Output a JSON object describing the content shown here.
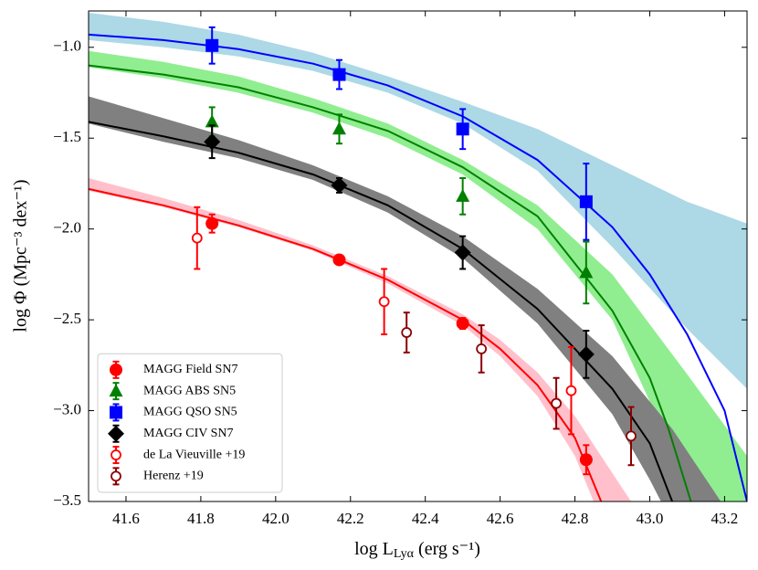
{
  "chart_data": {
    "type": "scatter",
    "ylabel": "log Φ (Mpc⁻³ dex⁻¹)",
    "xlabel": {
      "main": "log L",
      "sub": "Lyα",
      "rest": " (erg s⁻¹)"
    },
    "xlim": [
      41.5,
      43.26
    ],
    "ylim": [
      -3.5,
      -0.8
    ],
    "xticks": [
      41.6,
      41.8,
      {
        "value": 42,
        "label": "42.0"
      },
      42.2,
      42.4,
      42.6,
      42.8,
      {
        "value": 43,
        "label": "43.0"
      },
      43.2
    ],
    "yticks": [
      {
        "value": -1,
        "label": "−1.0"
      },
      {
        "value": -1.5,
        "label": "−1.5"
      },
      {
        "value": -2,
        "label": "−2.0"
      },
      {
        "value": -2.5,
        "label": "−2.5"
      },
      {
        "value": -3,
        "label": "−3.0"
      },
      {
        "value": -3.5,
        "label": "−3.5"
      }
    ],
    "legend": "lower left",
    "bands": [
      {
        "color": "#add8e6",
        "x": [
          41.5,
          41.7,
          41.9,
          42.1,
          42.3,
          42.5,
          42.7,
          42.9,
          43.1,
          43.26
        ],
        "upper": [
          -0.81,
          -0.86,
          -0.93,
          -1.03,
          -1.16,
          -1.3,
          -1.45,
          -1.65,
          -1.85,
          -1.97
        ],
        "lower": [
          -0.96,
          -1.0,
          -1.05,
          -1.13,
          -1.25,
          -1.42,
          -1.68,
          -2.1,
          -2.55,
          -2.88
        ]
      },
      {
        "color": "#90ee90",
        "x": [
          41.5,
          41.7,
          41.9,
          42.1,
          42.3,
          42.5,
          42.7,
          42.9,
          43.1,
          43.26
        ],
        "upper": [
          -1.02,
          -1.08,
          -1.16,
          -1.28,
          -1.42,
          -1.62,
          -1.87,
          -2.25,
          -2.8,
          -3.25
        ],
        "lower": [
          -1.11,
          -1.17,
          -1.25,
          -1.36,
          -1.5,
          -1.7,
          -2.0,
          -2.5,
          -3.4,
          -3.9
        ]
      },
      {
        "color": "#808080",
        "x": [
          41.5,
          41.7,
          41.9,
          42.1,
          42.3,
          42.5,
          42.7,
          42.9,
          43.0,
          43.06,
          43.19
        ],
        "upper": [
          -1.27,
          -1.39,
          -1.51,
          -1.65,
          -1.82,
          -2.04,
          -2.33,
          -2.7,
          -2.95,
          -3.1,
          -3.5
        ],
        "lower": [
          -1.42,
          -1.52,
          -1.61,
          -1.73,
          -1.91,
          -2.16,
          -2.52,
          -3.02,
          -3.38,
          -3.62,
          -4.0
        ]
      },
      {
        "color": "#ffc0cb",
        "x": [
          41.5,
          41.7,
          41.9,
          42.1,
          42.3,
          42.5,
          42.6,
          42.7,
          42.8,
          42.87,
          42.95
        ],
        "upper": [
          -1.72,
          -1.83,
          -1.95,
          -2.09,
          -2.26,
          -2.47,
          -2.61,
          -2.79,
          -3.03,
          -3.25,
          -3.5
        ],
        "lower": [
          -1.79,
          -1.88,
          -1.99,
          -2.12,
          -2.3,
          -2.53,
          -2.7,
          -2.92,
          -3.25,
          -3.6,
          -3.9
        ]
      }
    ],
    "curves": [
      {
        "color": "#0000ff",
        "x": [
          41.5,
          41.7,
          41.9,
          42.1,
          42.3,
          42.5,
          42.7,
          42.9,
          43.0,
          43.1,
          43.2,
          43.26
        ],
        "values": [
          -0.93,
          -0.96,
          -1.01,
          -1.09,
          -1.21,
          -1.38,
          -1.62,
          -1.99,
          -2.25,
          -2.58,
          -3.0,
          -3.5
        ]
      },
      {
        "color": "#008000",
        "x": [
          41.5,
          41.7,
          41.9,
          42.1,
          42.3,
          42.5,
          42.7,
          42.9,
          43.0,
          43.05,
          43.11
        ],
        "values": [
          -1.1,
          -1.15,
          -1.22,
          -1.33,
          -1.46,
          -1.66,
          -1.93,
          -2.45,
          -2.82,
          -3.1,
          -3.5
        ]
      },
      {
        "color": "#000000",
        "x": [
          41.5,
          41.7,
          41.9,
          42.1,
          42.3,
          42.5,
          42.7,
          42.9,
          43.0,
          43.06
        ],
        "values": [
          -1.41,
          -1.49,
          -1.58,
          -1.7,
          -1.87,
          -2.11,
          -2.44,
          -2.88,
          -3.18,
          -3.5
        ]
      },
      {
        "color": "#ff0000",
        "x": [
          41.5,
          41.7,
          41.9,
          42.1,
          42.3,
          42.5,
          42.6,
          42.7,
          42.8,
          42.87
        ],
        "values": [
          -1.78,
          -1.87,
          -1.98,
          -2.11,
          -2.28,
          -2.5,
          -2.66,
          -2.86,
          -3.15,
          -3.5
        ]
      }
    ],
    "series": [
      {
        "name": "MAGG Field SN7",
        "color": "#ff0000",
        "marker": "circle",
        "filled": true,
        "x": [
          41.83,
          42.17,
          42.5,
          42.83
        ],
        "values": [
          -1.97,
          -2.17,
          -2.52,
          -3.27
        ],
        "errors": [
          0.05,
          0.02,
          0.03,
          0.08
        ]
      },
      {
        "name": "MAGG ABS SN5",
        "color": "#008000",
        "marker": "triangle",
        "filled": true,
        "x": [
          41.83,
          42.17,
          42.5,
          42.83
        ],
        "values": [
          -1.41,
          -1.45,
          -1.82,
          -2.24
        ],
        "errors": [
          0.08,
          0.08,
          0.1,
          0.17
        ]
      },
      {
        "name": "MAGG QSO SN5",
        "color": "#0000ff",
        "marker": "square",
        "filled": true,
        "x": [
          41.83,
          42.17,
          42.5,
          42.83
        ],
        "values": [
          -0.99,
          -1.15,
          -1.45,
          -1.85
        ],
        "errors": [
          0.1,
          0.08,
          0.11,
          0.21
        ]
      },
      {
        "name": "MAGG CIV SN7",
        "color": "#000000",
        "marker": "diamond",
        "filled": true,
        "x": [
          41.83,
          42.17,
          42.5,
          42.83
        ],
        "values": [
          -1.52,
          -1.76,
          -2.13,
          -2.69
        ],
        "errors": [
          0.09,
          0.04,
          0.09,
          0.13
        ]
      },
      {
        "name": "de La Vieuville +19",
        "color": "#ff0000",
        "marker": "circle",
        "filled": false,
        "x": [
          41.79,
          42.29,
          42.79
        ],
        "values": [
          -2.05,
          -2.4,
          -2.89
        ],
        "errors": [
          0.17,
          0.18,
          0.24
        ]
      },
      {
        "name": "Herenz +19",
        "color": "#8b0000",
        "marker": "circle",
        "filled": false,
        "x": [
          42.35,
          42.55,
          42.75,
          42.95
        ],
        "values": [
          -2.57,
          -2.66,
          -2.96,
          -3.14
        ],
        "errors": [
          0.11,
          0.13,
          0.14,
          0.16
        ]
      }
    ]
  }
}
